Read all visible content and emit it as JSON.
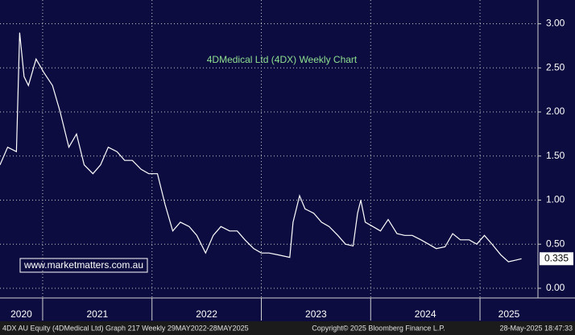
{
  "chart_data": {
    "type": "line",
    "title": "4DMedical Ltd (4DX) Weekly Chart",
    "watermark": "www.marketmatters.com.au",
    "footer": [
      "4DX AU Equity (4DMedical Ltd) Graph 217  Weekly 29MAY2022-28MAY2025",
      "Copyright© 2025 Bloomberg Finance L.P.",
      "28-May-2025 18:47:33"
    ],
    "grid": true,
    "xlim": [
      2020.61,
      2025.53
    ],
    "xticks": [
      {
        "value": 2020,
        "label": "2020"
      },
      {
        "value": 2021,
        "label": "2021"
      },
      {
        "value": 2022,
        "label": "2022"
      },
      {
        "value": 2023,
        "label": "2023"
      },
      {
        "value": 2024,
        "label": "2024"
      },
      {
        "value": 2025,
        "label": "2025"
      }
    ],
    "ylim": [
      -0.11,
      3.27
    ],
    "yticks": [
      {
        "value": 0,
        "label": "0.00"
      },
      {
        "value": 0.5,
        "label": "0.50"
      },
      {
        "value": 1,
        "label": "1.00"
      },
      {
        "value": 1.5,
        "label": "1.50"
      },
      {
        "value": 2,
        "label": "2.00"
      },
      {
        "value": 2.5,
        "label": "2.50"
      },
      {
        "value": 3,
        "label": "3.00"
      }
    ],
    "series": [
      {
        "name": "4DX AU Equity",
        "color": "#ffffff",
        "x": [
          2020.61,
          2020.68,
          2020.76,
          2020.79,
          2020.83,
          2020.87,
          2020.94,
          2021.01,
          2021.09,
          2021.16,
          2021.24,
          2021.31,
          2021.38,
          2021.46,
          2021.53,
          2021.6,
          2021.68,
          2021.75,
          2021.82,
          2021.9,
          2021.97,
          2022.05,
          2022.12,
          2022.19,
          2022.26,
          2022.34,
          2022.41,
          2022.49,
          2022.56,
          2022.63,
          2022.71,
          2022.78,
          2022.85,
          2022.93,
          2023.0,
          2023.07,
          2023.15,
          2023.26,
          2023.29,
          2023.35,
          2023.4,
          2023.48,
          2023.55,
          2023.62,
          2023.7,
          2023.77,
          2023.84,
          2023.88,
          2023.91,
          2023.95,
          2024.02,
          2024.09,
          2024.16,
          2024.24,
          2024.31,
          2024.38,
          2024.46,
          2024.53,
          2024.6,
          2024.68,
          2024.75,
          2024.82,
          2024.9,
          2024.97,
          2025.04,
          2025.11,
          2025.19,
          2025.26,
          2025.33,
          2025.38
        ],
        "values": [
          1.4,
          1.6,
          1.55,
          2.9,
          2.4,
          2.3,
          2.6,
          2.45,
          2.3,
          2.0,
          1.6,
          1.75,
          1.4,
          1.3,
          1.4,
          1.6,
          1.55,
          1.45,
          1.45,
          1.35,
          1.3,
          1.3,
          0.95,
          0.65,
          0.75,
          0.7,
          0.6,
          0.4,
          0.6,
          0.7,
          0.65,
          0.65,
          0.55,
          0.45,
          0.4,
          0.4,
          0.38,
          0.35,
          0.75,
          1.05,
          0.9,
          0.85,
          0.75,
          0.7,
          0.6,
          0.5,
          0.48,
          0.85,
          1.0,
          0.75,
          0.7,
          0.65,
          0.78,
          0.62,
          0.6,
          0.6,
          0.55,
          0.5,
          0.45,
          0.47,
          0.62,
          0.55,
          0.55,
          0.5,
          0.6,
          0.5,
          0.38,
          0.3,
          0.32,
          0.335
        ]
      }
    ]
  }
}
